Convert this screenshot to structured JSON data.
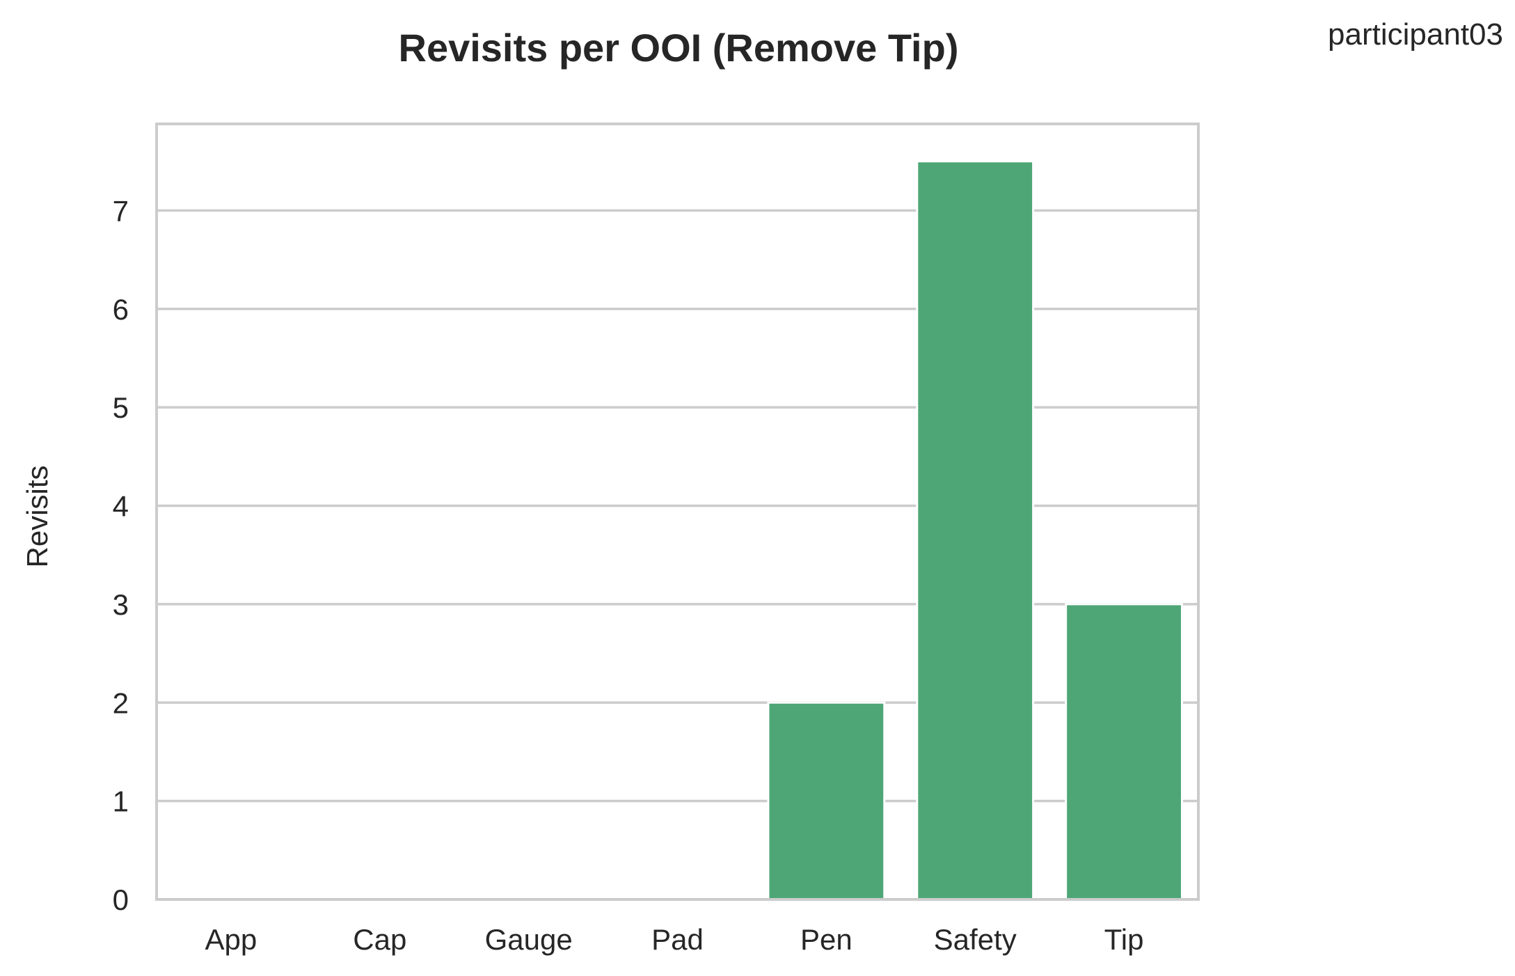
{
  "chart_data": {
    "type": "bar",
    "title": "Revisits per OOI (Remove Tip)",
    "annotation": "participant03",
    "xlabel": "",
    "ylabel": "Revisits",
    "categories": [
      "App",
      "Cap",
      "Gauge",
      "Pad",
      "Pen",
      "Safety",
      "Tip"
    ],
    "values": [
      0,
      0,
      0,
      0,
      2,
      7.5,
      3
    ],
    "ylim": [
      0,
      7.88
    ],
    "yticks": [
      0,
      1,
      2,
      3,
      4,
      5,
      6,
      7
    ],
    "grid": "y",
    "legend": "none",
    "bar_color": "#4ea676",
    "grid_color": "#cccccc",
    "frame_color": "#cccccc"
  }
}
